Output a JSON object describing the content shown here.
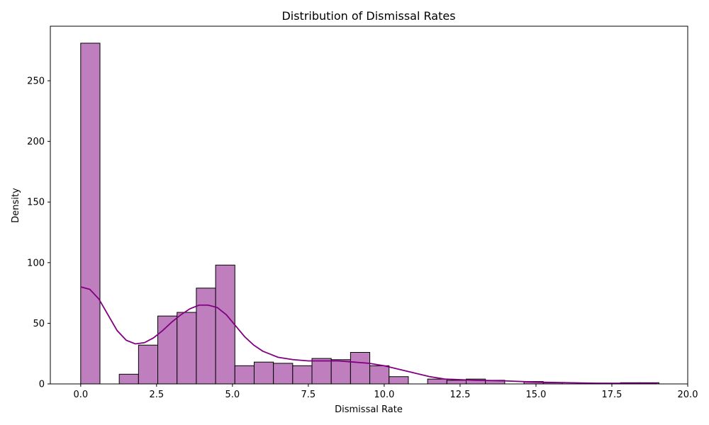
{
  "chart_data": {
    "type": "bar",
    "title": "Distribution of Dismissal Rates",
    "xlabel": "Dismissal Rate",
    "ylabel": "Density",
    "xlim": [
      -1,
      20
    ],
    "ylim": [
      0,
      295
    ],
    "xticks": [
      0.0,
      2.5,
      5.0,
      7.5,
      10.0,
      12.5,
      15.0,
      17.5,
      20.0
    ],
    "xtick_labels": [
      "0.0",
      "2.5",
      "5.0",
      "7.5",
      "10.0",
      "12.5",
      "15.0",
      "17.5",
      "20.0"
    ],
    "yticks": [
      0,
      50,
      100,
      150,
      200,
      250
    ],
    "ytick_labels": [
      "0",
      "50",
      "100",
      "150",
      "200",
      "250"
    ],
    "bin_start": 0.0,
    "bin_width": 0.635,
    "values": [
      281,
      0,
      8,
      32,
      56,
      59,
      79,
      98,
      15,
      18,
      17,
      15,
      21,
      20,
      26,
      15,
      6,
      0,
      4,
      3,
      4,
      3,
      0,
      2,
      1,
      0,
      0,
      0,
      1,
      1
    ],
    "kde": {
      "x": [
        0.0,
        0.3,
        0.6,
        0.9,
        1.2,
        1.5,
        1.8,
        2.1,
        2.4,
        2.7,
        3.0,
        3.3,
        3.6,
        3.9,
        4.2,
        4.5,
        4.8,
        5.1,
        5.4,
        5.7,
        6.0,
        6.5,
        7.0,
        7.5,
        8.0,
        8.5,
        9.0,
        9.5,
        10.0,
        10.5,
        11.0,
        11.5,
        12.0,
        12.5,
        13.0,
        14.0,
        15.0,
        16.0,
        17.0,
        18.0,
        19.0
      ],
      "y": [
        80,
        78,
        70,
        57,
        44,
        36,
        33,
        34,
        38,
        44,
        51,
        57,
        62,
        65,
        65,
        63,
        57,
        48,
        39,
        32,
        27,
        22,
        20,
        19,
        19,
        19,
        18,
        17,
        15,
        12,
        9,
        6,
        4,
        3.5,
        3,
        2.5,
        1.5,
        1,
        0.6,
        0.5,
        0.5
      ]
    },
    "bar_color": "#bf7fbf",
    "bar_edge_color": "#000000",
    "kde_color": "#800080",
    "grid": false,
    "legend": "none"
  }
}
